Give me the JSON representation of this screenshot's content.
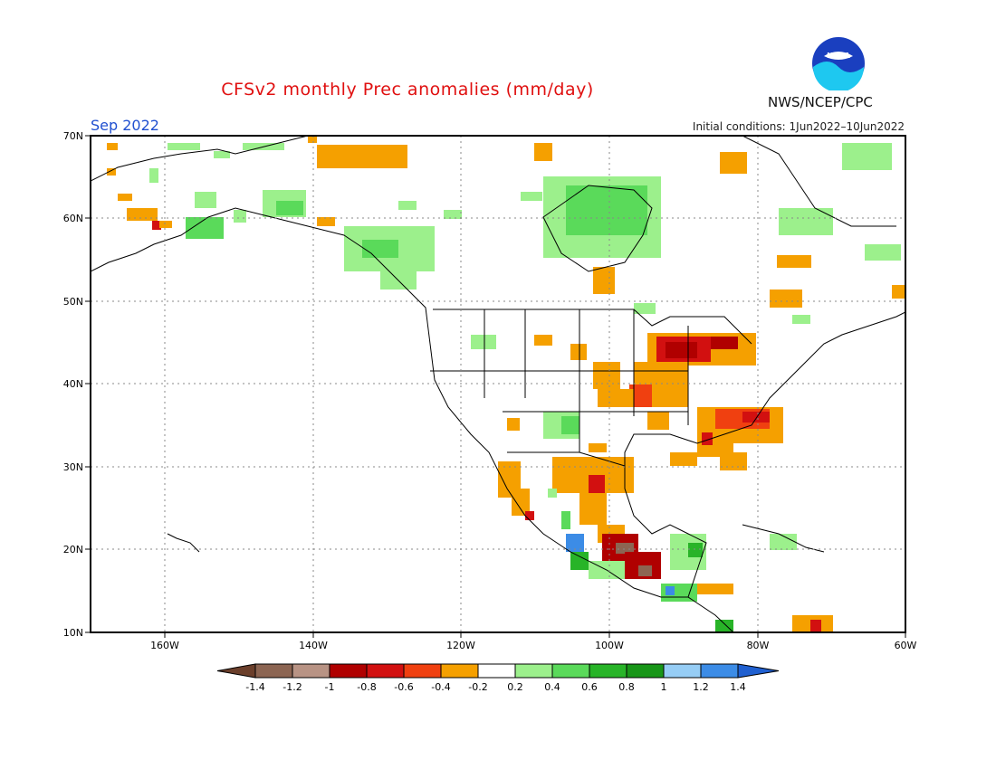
{
  "title": "CFSv2 monthly Prec anomalies (mm/day)",
  "month_label": "Sep 2022",
  "initial_conditions": "Initial conditions: 1Jun2022–10Jun2022",
  "organization": "NWS/NCEP/CPC",
  "logo_text": "NOAA",
  "colors": {
    "title": "#e01010",
    "month": "#2050d0",
    "coastline": "#000000",
    "grid": "#888888"
  },
  "lat_labels": [
    "70N",
    "60N",
    "50N",
    "40N",
    "30N",
    "20N",
    "10N"
  ],
  "lon_labels": [
    "160W",
    "140W",
    "120W",
    "100W",
    "80W",
    "60W"
  ],
  "colorbar": {
    "labels": [
      "-1.4",
      "-1.2",
      "-1",
      "-0.8",
      "-0.6",
      "-0.4",
      "-0.2",
      "0.2",
      "0.4",
      "0.6",
      "0.8",
      "1",
      "1.2",
      "1.4"
    ],
    "colors": [
      "#6b3f2b",
      "#8c6552",
      "#b89384",
      "#b00000",
      "#d21010",
      "#f04010",
      "#f5a000",
      "#ffffff",
      "#9cf08c",
      "#5ada5a",
      "#28b428",
      "#189618",
      "#96cdf5",
      "#3c8ce6",
      "#2060d0"
    ]
  }
}
